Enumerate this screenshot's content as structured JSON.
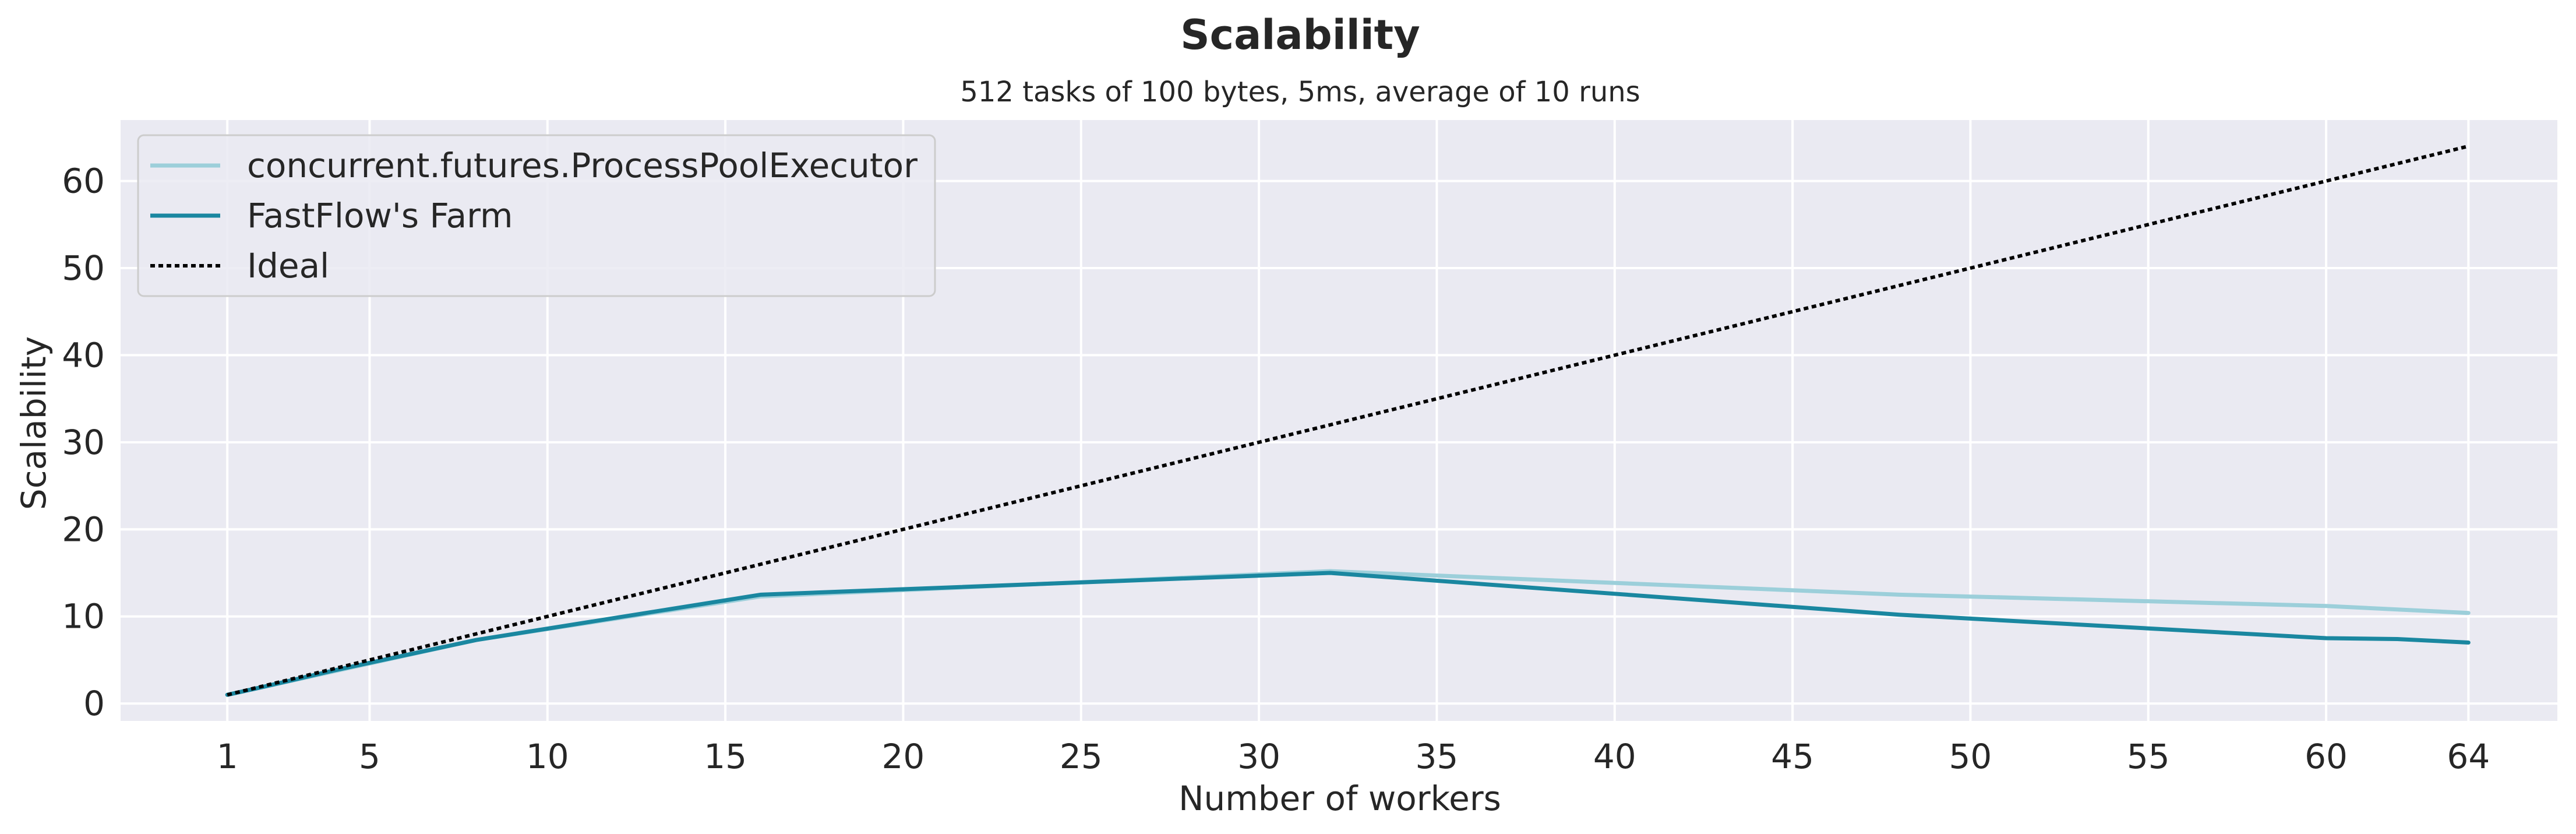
{
  "chart_data": {
    "type": "line",
    "title": "Scalability",
    "subtitle": "512 tasks of 100 bytes, 5ms, average of 10 runs",
    "xlabel": "Number of workers",
    "ylabel": "Scalability",
    "xlim": [
      -2,
      66.5
    ],
    "ylim": [
      -2,
      67
    ],
    "xticks": [
      1,
      5,
      10,
      15,
      20,
      25,
      30,
      35,
      40,
      45,
      50,
      55,
      60,
      64
    ],
    "yticks": [
      0,
      10,
      20,
      30,
      40,
      50,
      60
    ],
    "grid": true,
    "legend_position": "top-left",
    "background": "#eaeaf2",
    "series": [
      {
        "name": "concurrent.futures.ProcessPoolExecutor",
        "color": "#9ccfda",
        "style": "solid",
        "x": [
          1,
          2,
          4,
          8,
          16,
          32,
          48,
          60,
          64
        ],
        "y": [
          1,
          1.9,
          3.7,
          7.3,
          12.3,
          15.2,
          12.5,
          11.2,
          10.4
        ]
      },
      {
        "name": "FastFlow's Farm",
        "color": "#1a87a0",
        "style": "solid",
        "x": [
          1,
          2,
          4,
          8,
          16,
          32,
          48,
          60,
          62,
          64
        ],
        "y": [
          1,
          1.9,
          3.8,
          7.3,
          12.5,
          15.0,
          10.2,
          7.5,
          7.4,
          7.0
        ]
      },
      {
        "name": "Ideal",
        "color": "#000000",
        "style": "dotted",
        "x": [
          1,
          64
        ],
        "y": [
          1,
          64
        ]
      }
    ]
  }
}
